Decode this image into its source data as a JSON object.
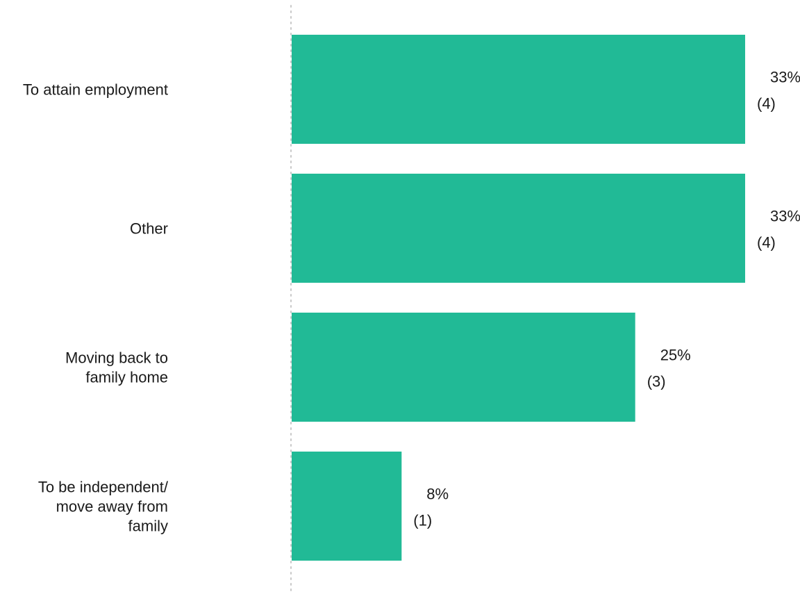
{
  "chart_data": {
    "type": "bar",
    "orientation": "horizontal",
    "categories": [
      [
        "To attain employment"
      ],
      [
        "Other"
      ],
      [
        "Moving back to",
        "family home"
      ],
      [
        "To be independent/",
        "move away from",
        "family"
      ]
    ],
    "values": [
      33,
      33,
      25,
      8
    ],
    "counts": [
      4,
      4,
      3,
      1
    ],
    "value_labels": [
      "33%",
      "33%",
      "25%",
      "8%"
    ],
    "count_labels": [
      "(4)",
      "(4)",
      "(3)",
      "(1)"
    ],
    "xlim": [
      0,
      33
    ],
    "grid": false,
    "baseline_style": "dotted",
    "colors": {
      "bar": "#21BA96",
      "text": "#1a1a1a",
      "baseline": "#c8c8c8"
    }
  }
}
